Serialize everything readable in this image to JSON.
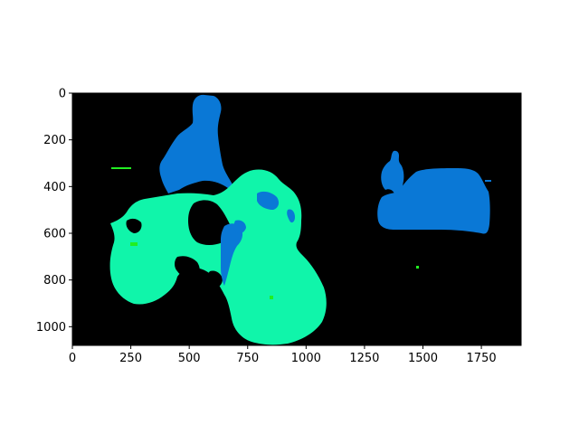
{
  "image": {
    "description_free": true,
    "width_units": 1920,
    "height_units": 1080,
    "background_color": "#000000"
  },
  "axes": {
    "xlim": [
      0,
      1920
    ],
    "ylim": [
      1080,
      0
    ],
    "x_ticks": [
      {
        "value": 0,
        "label": "0"
      },
      {
        "value": 250,
        "label": "250"
      },
      {
        "value": 500,
        "label": "500"
      },
      {
        "value": 750,
        "label": "750"
      },
      {
        "value": 1000,
        "label": "1000"
      },
      {
        "value": 1250,
        "label": "1250"
      },
      {
        "value": 1500,
        "label": "1500"
      },
      {
        "value": 1750,
        "label": "1750"
      }
    ],
    "y_ticks": [
      {
        "value": 0,
        "label": "0"
      },
      {
        "value": 200,
        "label": "200"
      },
      {
        "value": 400,
        "label": "400"
      },
      {
        "value": 600,
        "label": "600"
      },
      {
        "value": 800,
        "label": "800"
      },
      {
        "value": 1000,
        "label": "1000"
      }
    ]
  },
  "colors": {
    "person_blue": "#0a78d6",
    "motorbike_green": "#10f5aa",
    "bright_green": "#22ee22",
    "axis": "#000000"
  }
}
